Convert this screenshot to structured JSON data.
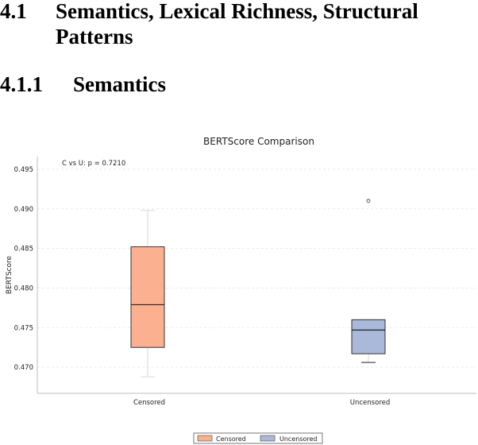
{
  "section": {
    "number": "4.1",
    "title": "Semantics, Lexical Richness, Structural Patterns"
  },
  "subsection": {
    "number": "4.1.1",
    "title": "Semantics"
  },
  "chart_data": {
    "type": "box",
    "title": "BERTScore Comparison",
    "xlabel": "",
    "ylabel": "BERTScore",
    "ylim": [
      0.4667,
      0.4966
    ],
    "yticks": [
      0.47,
      0.475,
      0.48,
      0.485,
      0.49,
      0.495
    ],
    "ytick_labels": [
      "0.470",
      "0.475",
      "0.480",
      "0.485",
      "0.490",
      "0.495"
    ],
    "grid": true,
    "annotation": "C vs U: p = 0.7210",
    "legend_position": "bottom",
    "categories": [
      "Censored",
      "Uncensored"
    ],
    "series": [
      {
        "name": "Censored",
        "color": "#fbb090",
        "min": 0.4688,
        "q1": 0.4725,
        "median": 0.4779,
        "q3": 0.4852,
        "max": 0.4898,
        "outliers": []
      },
      {
        "name": "Uncensored",
        "color": "#aab9d9",
        "min": 0.4706,
        "q1": 0.4717,
        "median": 0.4747,
        "q3": 0.476,
        "max": 0.476,
        "outliers": [
          0.491
        ]
      }
    ]
  }
}
